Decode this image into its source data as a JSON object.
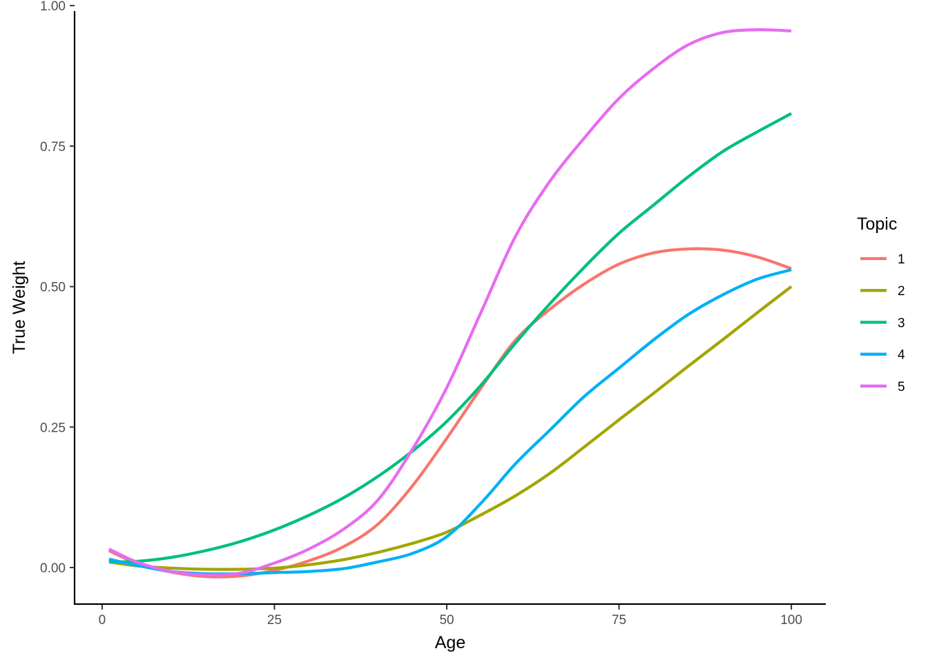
{
  "chart_data": {
    "type": "line",
    "xlabel": "Age",
    "ylabel": "True Weight",
    "xlim": [
      -4,
      105
    ],
    "ylim": [
      -0.065,
      1.01
    ],
    "x_ticks": [
      0,
      25,
      50,
      75,
      100
    ],
    "x_tick_labels": [
      "0",
      "25",
      "50",
      "75",
      "100"
    ],
    "y_ticks": [
      0,
      0.25,
      0.5,
      0.75,
      1.0
    ],
    "y_tick_labels": [
      "0.00",
      "0.25",
      "0.50",
      "0.75",
      "1.00"
    ],
    "grid": false,
    "legend": {
      "title": "Topic",
      "position": "right"
    },
    "x": [
      1,
      5,
      10,
      15,
      20,
      25,
      30,
      35,
      40,
      45,
      50,
      55,
      60,
      65,
      70,
      75,
      80,
      85,
      90,
      95,
      100
    ],
    "series": [
      {
        "name": "1",
        "color": "#F8766D",
        "values": [
          0.03,
          0.008,
          -0.008,
          -0.016,
          -0.015,
          -0.005,
          0.012,
          0.037,
          0.077,
          0.145,
          0.23,
          0.32,
          0.405,
          0.46,
          0.505,
          0.54,
          0.56,
          0.567,
          0.565,
          0.553,
          0.532
        ]
      },
      {
        "name": "2",
        "color": "#A3A500",
        "values": [
          0.01,
          0.003,
          -0.001,
          -0.003,
          -0.003,
          -0.001,
          0.005,
          0.014,
          0.027,
          0.043,
          0.063,
          0.094,
          0.128,
          0.168,
          0.215,
          0.263,
          0.31,
          0.358,
          0.405,
          0.453,
          0.5
        ]
      },
      {
        "name": "3",
        "color": "#00BF7D",
        "values": [
          0.01,
          0.011,
          0.018,
          0.03,
          0.046,
          0.067,
          0.093,
          0.124,
          0.162,
          0.207,
          0.26,
          0.325,
          0.4,
          0.47,
          0.535,
          0.595,
          0.645,
          0.695,
          0.74,
          0.775,
          0.808
        ]
      },
      {
        "name": "4",
        "color": "#00B0F6",
        "values": [
          0.015,
          0.004,
          -0.007,
          -0.011,
          -0.011,
          -0.009,
          -0.007,
          -0.002,
          0.01,
          0.025,
          0.055,
          0.115,
          0.185,
          0.245,
          0.305,
          0.355,
          0.405,
          0.45,
          0.485,
          0.513,
          0.53
        ]
      },
      {
        "name": "5",
        "color": "#E76BF3",
        "values": [
          0.033,
          0.01,
          -0.007,
          -0.013,
          -0.01,
          0.008,
          0.033,
          0.068,
          0.12,
          0.21,
          0.32,
          0.455,
          0.59,
          0.688,
          0.765,
          0.835,
          0.888,
          0.93,
          0.952,
          0.957,
          0.955
        ]
      }
    ]
  }
}
